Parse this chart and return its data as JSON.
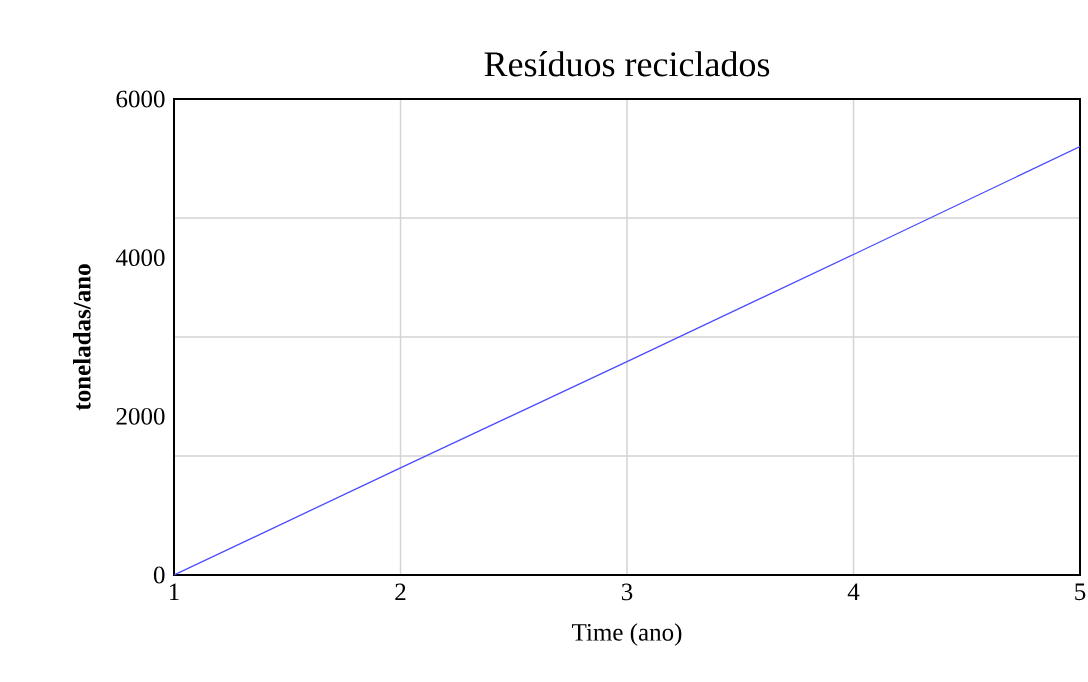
{
  "chart_data": {
    "type": "line",
    "title": "Resíduos reciclados",
    "xlabel": "Time (ano)",
    "ylabel": "toneladas/ano",
    "x": [
      1,
      2,
      3,
      4,
      5
    ],
    "series": [
      {
        "color": "#4b4bff",
        "values": [
          0,
          1350,
          2690,
          4040,
          5400
        ]
      }
    ],
    "xlim": [
      1,
      5
    ],
    "ylim": [
      0,
      6000
    ],
    "xticks": [
      1,
      2,
      3,
      4,
      5
    ],
    "yticks": [
      0,
      {
        "value": 1500,
        "label": null
      },
      2000,
      {
        "value": 3000,
        "label": null
      },
      4000,
      {
        "value": 4500,
        "label": null
      },
      6000
    ],
    "grid": true,
    "line_style": "solid",
    "marker": "none"
  }
}
